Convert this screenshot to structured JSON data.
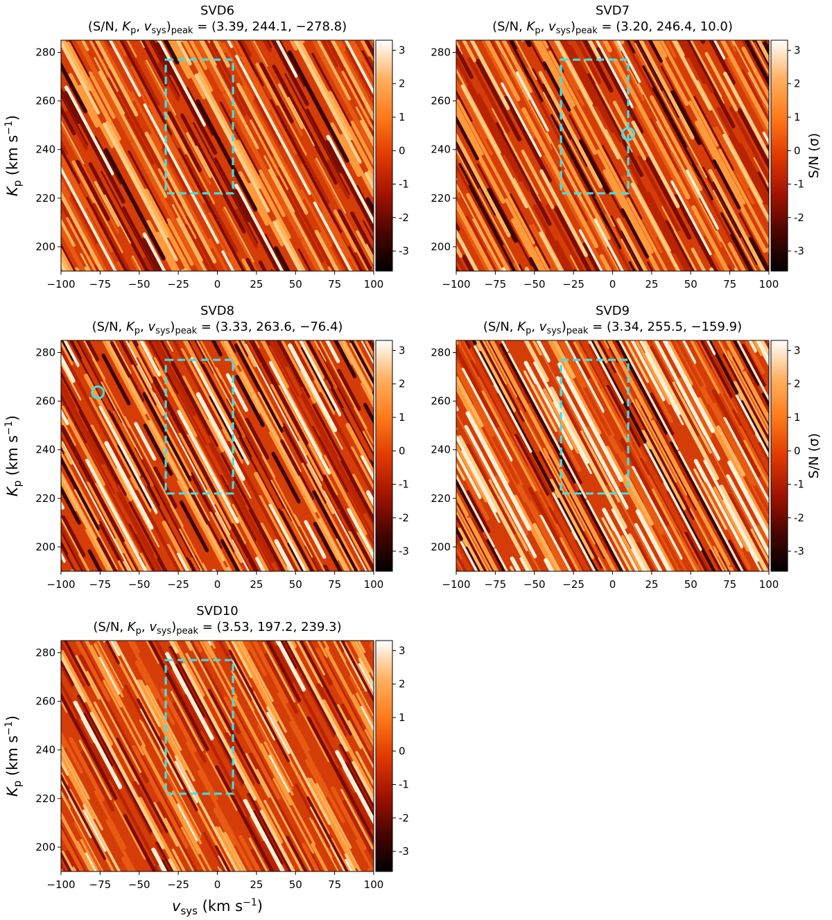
{
  "chart_data": {
    "type": "heatmap",
    "xlabel_main": "v",
    "xlabel_sub": "sys",
    "xlabel_units": "(km s",
    "ylabel_main": "K",
    "ylabel_sub": "p",
    "ylabel_units": "(km s",
    "units_power": "−1",
    "units_close": ")",
    "colorbar_label": "S/N (σ)",
    "xlim": [
      -100,
      100
    ],
    "ylim": [
      190,
      285
    ],
    "xticks": [
      -100,
      -75,
      -50,
      -25,
      0,
      25,
      50,
      75,
      100
    ],
    "xtick_labels": [
      "−100",
      "−75",
      "−50",
      "−25",
      "0",
      "25",
      "50",
      "75",
      "100"
    ],
    "yticks": [
      200,
      220,
      240,
      260,
      280
    ],
    "ytick_labels": [
      "200",
      "220",
      "240",
      "260",
      "280"
    ],
    "cticks": [
      -3,
      -2,
      -1,
      0,
      1,
      2,
      3
    ],
    "ctick_labels": [
      "-3",
      "-2",
      "-1",
      "0",
      "1",
      "2",
      "3"
    ],
    "clim": [
      -3.6,
      3.3
    ],
    "colormap": [
      "#000000",
      "#4a0500",
      "#a31300",
      "#e03a00",
      "#ff7a1a",
      "#ffb060",
      "#ffffff"
    ],
    "box_color": "#40e0e6",
    "region_box": {
      "vsys": [
        -33,
        10
      ],
      "kp": [
        222,
        277
      ]
    },
    "title_prefix": "(S/N,  ",
    "title_kp": "K",
    "title_kp_sub": "p",
    "title_sep": ",  ",
    "title_v": "v",
    "title_v_sub": "sys",
    "title_close": ")",
    "title_peak": "peak",
    "title_eq": " = ",
    "panels": [
      {
        "name": "SVD6",
        "peak_values": "(3.39,  244.1,  −278.8)",
        "snr": 3.39,
        "kp": 244.1,
        "vsys": -278.8,
        "circle": null
      },
      {
        "name": "SVD7",
        "peak_values": "(3.20,  246.4,  10.0)",
        "snr": 3.2,
        "kp": 246.4,
        "vsys": 10.0,
        "circle": [
          10.0,
          246.4
        ]
      },
      {
        "name": "SVD8",
        "peak_values": "(3.33,  263.6,  −76.4)",
        "snr": 3.33,
        "kp": 263.6,
        "vsys": -76.4,
        "circle": [
          -76.4,
          263.6
        ]
      },
      {
        "name": "SVD9",
        "peak_values": "(3.34,  255.5,  −159.9)",
        "snr": 3.34,
        "kp": 255.5,
        "vsys": -159.9,
        "circle": null
      },
      {
        "name": "SVD10",
        "peak_values": "(3.53,  197.2,  239.3)",
        "snr": 3.53,
        "kp": 197.2,
        "vsys": 239.3,
        "circle": null
      }
    ]
  }
}
